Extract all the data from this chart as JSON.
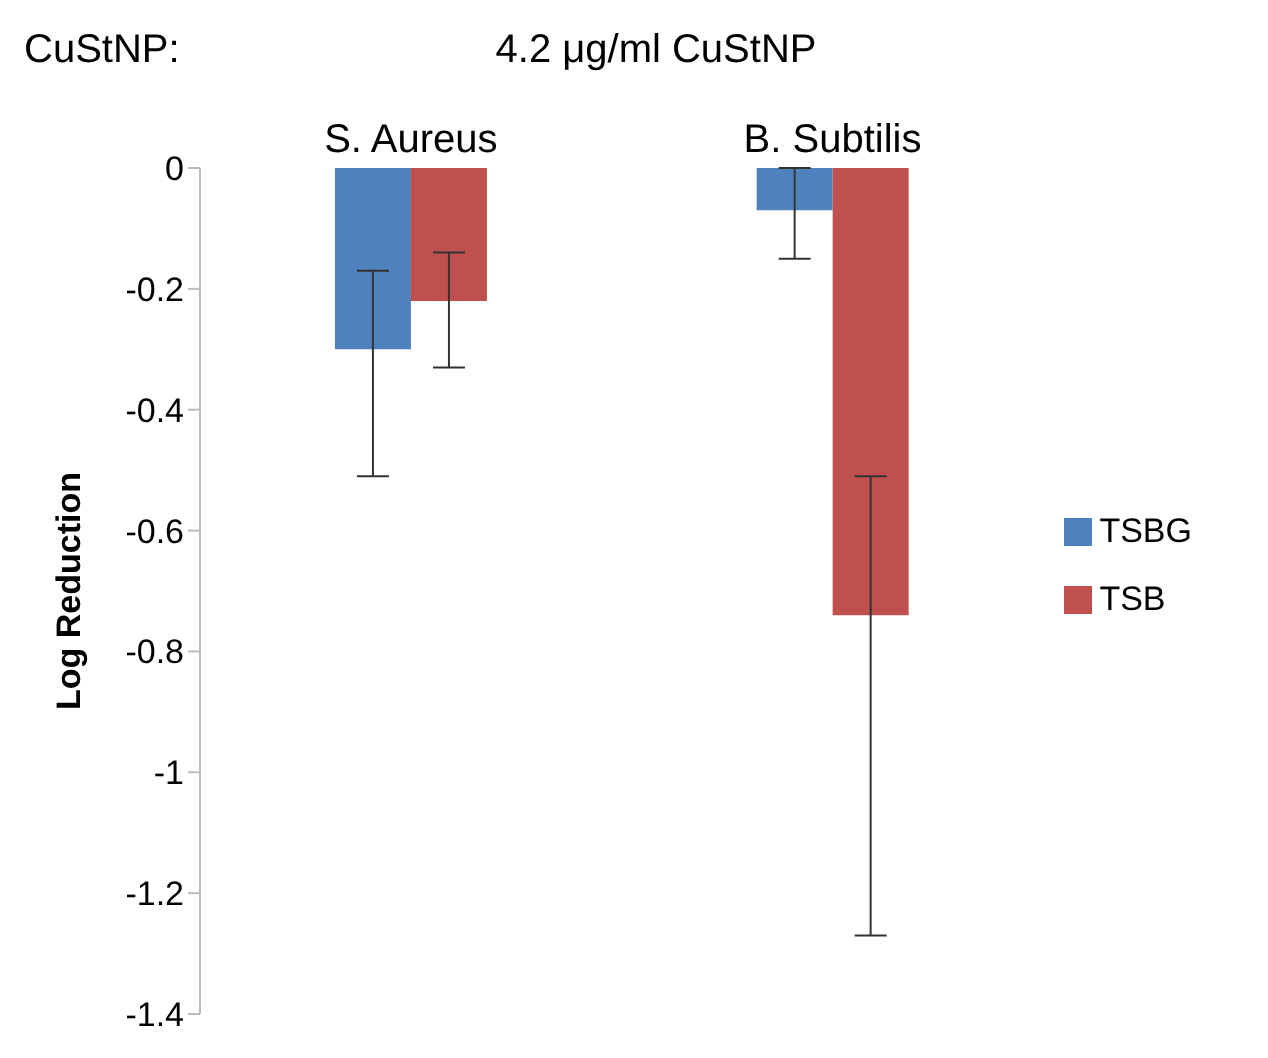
{
  "chart_data": {
    "type": "bar",
    "title": "4.2 μg/ml CuStNP",
    "annotations": [
      "CuStNP:"
    ],
    "ylabel": "Log Reduction",
    "categories": [
      "S. Aureus",
      "B. Subtilis"
    ],
    "series": [
      {
        "name": "TSBG",
        "color": "#4f81bd",
        "values": [
          -0.3,
          -0.07
        ],
        "errors": [
          [
            -0.51,
            -0.17
          ],
          [
            -0.15,
            0
          ]
        ]
      },
      {
        "name": "TSB",
        "color": "#c0504d",
        "values": [
          -0.22,
          -0.74
        ],
        "errors": [
          [
            -0.33,
            -0.14
          ],
          [
            -1.27,
            -0.51
          ]
        ]
      }
    ],
    "ylim": [
      -1.4,
      0
    ],
    "yticks": [
      0,
      -0.2,
      -0.4,
      -0.6,
      -0.8,
      -1,
      -1.2,
      -1.4
    ],
    "grid": false,
    "legend": "right"
  }
}
